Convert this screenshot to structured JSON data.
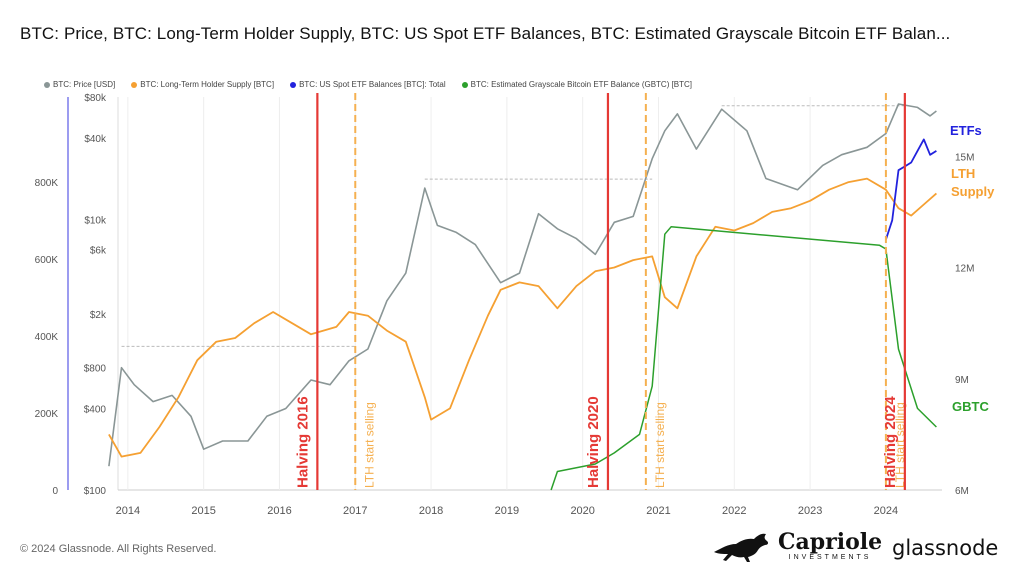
{
  "title": "BTC: Price, BTC: Long-Term Holder Supply, BTC: US Spot ETF Balances, BTC: Estimated Grayscale Bitcoin ETF Balan...",
  "footer": "© 2024 Glassnode. All Rights Reserved.",
  "brand": {
    "capriole": "Capriole",
    "capriole_sub": "INVESTMENTS",
    "glassnode": "glassnode"
  },
  "legend": [
    {
      "label": "BTC: Price [USD]",
      "color": "#8a9696"
    },
    {
      "label": "BTC: Long-Term Holder Supply [BTC]",
      "color": "#f5a032"
    },
    {
      "label": "BTC: US Spot ETF Balances [BTC]: Total",
      "color": "#2222dd"
    },
    {
      "label": "BTC: Estimated Grayscale Bitcoin ETF Balance (GBTC) [BTC]",
      "color": "#2ca02c"
    }
  ],
  "chart_data": {
    "type": "line",
    "x_axis": {
      "ticks": [
        "2014",
        "2015",
        "2016",
        "2017",
        "2018",
        "2019",
        "2020",
        "2021",
        "2022",
        "2023",
        "2024"
      ]
    },
    "left_axis_etf": {
      "ticks": [
        "0",
        "200K",
        "400K",
        "600K",
        "800K"
      ]
    },
    "left_axis_price": {
      "ticks": [
        "$100",
        "$400",
        "$800",
        "$2k",
        "$6k",
        "$10k",
        "$40k",
        "$80k"
      ],
      "scale": "log"
    },
    "right_axis": {
      "ticks": [
        "6M",
        "9M",
        "12M",
        "15M"
      ]
    },
    "series": [
      {
        "name": "BTC: Price [USD]",
        "color": "#8a9696",
        "axis": "price-log",
        "points": [
          [
            "2013-10",
            150
          ],
          [
            "2013-12",
            800
          ],
          [
            "2014-02",
            600
          ],
          [
            "2014-05",
            450
          ],
          [
            "2014-08",
            500
          ],
          [
            "2014-11",
            350
          ],
          [
            "2015-01",
            200
          ],
          [
            "2015-04",
            230
          ],
          [
            "2015-08",
            230
          ],
          [
            "2015-11",
            350
          ],
          [
            "2016-02",
            400
          ],
          [
            "2016-06",
            650
          ],
          [
            "2016-09",
            600
          ],
          [
            "2016-12",
            900
          ],
          [
            "2017-03",
            1100
          ],
          [
            "2017-06",
            2500
          ],
          [
            "2017-09",
            4000
          ],
          [
            "2017-12",
            17000
          ],
          [
            "2018-02",
            9000
          ],
          [
            "2018-05",
            8000
          ],
          [
            "2018-08",
            6500
          ],
          [
            "2018-11",
            4000
          ],
          [
            "2018-12",
            3400
          ],
          [
            "2019-03",
            4000
          ],
          [
            "2019-06",
            11000
          ],
          [
            "2019-09",
            8500
          ],
          [
            "2019-12",
            7200
          ],
          [
            "2020-03",
            5500
          ],
          [
            "2020-06",
            9500
          ],
          [
            "2020-09",
            10500
          ],
          [
            "2020-12",
            28000
          ],
          [
            "2021-02",
            45000
          ],
          [
            "2021-04",
            60000
          ],
          [
            "2021-07",
            33000
          ],
          [
            "2021-11",
            65000
          ],
          [
            "2022-03",
            45000
          ],
          [
            "2022-06",
            20000
          ],
          [
            "2022-11",
            16500
          ],
          [
            "2023-03",
            25000
          ],
          [
            "2023-06",
            30000
          ],
          [
            "2023-10",
            34000
          ],
          [
            "2024-01",
            43000
          ],
          [
            "2024-03",
            71000
          ],
          [
            "2024-06",
            67000
          ],
          [
            "2024-08",
            58000
          ],
          [
            "2024-09",
            63000
          ]
        ]
      },
      {
        "name": "BTC: Long-Term Holder Supply [BTC]",
        "color": "#f5a032",
        "axis": "right",
        "points": [
          [
            "2013-10",
            7.5
          ],
          [
            "2013-12",
            6.9
          ],
          [
            "2014-03",
            7.0
          ],
          [
            "2014-06",
            7.7
          ],
          [
            "2014-09",
            8.5
          ],
          [
            "2014-12",
            9.5
          ],
          [
            "2015-03",
            10.0
          ],
          [
            "2015-06",
            10.1
          ],
          [
            "2015-09",
            10.5
          ],
          [
            "2015-12",
            10.8
          ],
          [
            "2016-03",
            10.5
          ],
          [
            "2016-06",
            10.2
          ],
          [
            "2016-10",
            10.4
          ],
          [
            "2016-12",
            10.8
          ],
          [
            "2017-03",
            10.7
          ],
          [
            "2017-06",
            10.3
          ],
          [
            "2017-09",
            10.0
          ],
          [
            "2017-12",
            8.5
          ],
          [
            "2018-01",
            7.9
          ],
          [
            "2018-04",
            8.2
          ],
          [
            "2018-07",
            9.5
          ],
          [
            "2018-10",
            10.7
          ],
          [
            "2018-12",
            11.4
          ],
          [
            "2019-03",
            11.6
          ],
          [
            "2019-06",
            11.5
          ],
          [
            "2019-09",
            10.9
          ],
          [
            "2019-12",
            11.5
          ],
          [
            "2020-03",
            11.9
          ],
          [
            "2020-06",
            12.0
          ],
          [
            "2020-09",
            12.2
          ],
          [
            "2020-12",
            12.3
          ],
          [
            "2021-02",
            11.2
          ],
          [
            "2021-04",
            10.9
          ],
          [
            "2021-07",
            12.3
          ],
          [
            "2021-10",
            13.1
          ],
          [
            "2022-01",
            13.0
          ],
          [
            "2022-04",
            13.2
          ],
          [
            "2022-07",
            13.5
          ],
          [
            "2022-10",
            13.6
          ],
          [
            "2023-01",
            13.8
          ],
          [
            "2023-04",
            14.1
          ],
          [
            "2023-07",
            14.3
          ],
          [
            "2023-10",
            14.4
          ],
          [
            "2024-01",
            14.1
          ],
          [
            "2024-03",
            13.6
          ],
          [
            "2024-05",
            13.4
          ],
          [
            "2024-07",
            13.7
          ],
          [
            "2024-09",
            14.0
          ]
        ]
      },
      {
        "name": "BTC: US Spot ETF Balances [BTC]: Total",
        "color": "#2222dd",
        "axis": "etf",
        "points": [
          [
            "2024-01",
            650000
          ],
          [
            "2024-02",
            700000
          ],
          [
            "2024-03",
            830000
          ],
          [
            "2024-04",
            840000
          ],
          [
            "2024-05",
            850000
          ],
          [
            "2024-06",
            880000
          ],
          [
            "2024-07",
            910000
          ],
          [
            "2024-08",
            870000
          ],
          [
            "2024-09",
            880000
          ]
        ]
      },
      {
        "name": "BTC: Estimated Grayscale Bitcoin ETF Balance (GBTC) [BTC]",
        "color": "#2ca02c",
        "axis": "right",
        "points": [
          [
            "2019-08",
            6.0
          ],
          [
            "2019-09",
            6.5
          ],
          [
            "2020-03",
            6.7
          ],
          [
            "2020-06",
            7.0
          ],
          [
            "2020-10",
            7.5
          ],
          [
            "2020-12",
            8.8
          ],
          [
            "2021-02",
            12.9
          ],
          [
            "2021-03",
            13.1
          ],
          [
            "2023-12",
            12.6
          ],
          [
            "2024-01",
            12.5
          ],
          [
            "2024-03",
            9.8
          ],
          [
            "2024-06",
            8.2
          ],
          [
            "2024-09",
            7.7
          ]
        ]
      }
    ],
    "events": [
      {
        "date": "2016-07",
        "label": "Halving 2016",
        "color": "#e53935",
        "style": "solid"
      },
      {
        "date": "2017-01",
        "label": "LTH start selling",
        "color": "#f5b050",
        "style": "dashed"
      },
      {
        "date": "2020-05",
        "label": "Halving 2020",
        "color": "#e53935",
        "style": "solid"
      },
      {
        "date": "2020-11",
        "label": "LTH start selling",
        "color": "#f5b050",
        "style": "dashed"
      },
      {
        "date": "2024-01",
        "label": "LTH start selling",
        "color": "#f5b050",
        "style": "dashed"
      },
      {
        "date": "2024-04",
        "label": "Halving 2024",
        "color": "#e53935",
        "style": "solid"
      }
    ],
    "series_labels": [
      {
        "text": "ETFs",
        "color": "#2222dd"
      },
      {
        "text": "LTH Supply",
        "color": "#f5a032"
      },
      {
        "text": "GBTC",
        "color": "#2ca02c"
      }
    ],
    "ath_markers": [
      {
        "from": "2013-12",
        "to": "2017-01",
        "price": 1150
      },
      {
        "from": "2017-12",
        "to": "2020-12",
        "price": 19800
      },
      {
        "from": "2021-11",
        "to": "2024-04",
        "price": 69000
      }
    ]
  }
}
